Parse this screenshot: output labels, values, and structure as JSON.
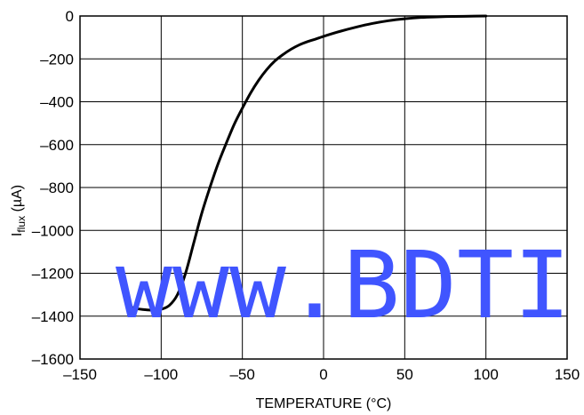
{
  "chart_data": {
    "type": "line",
    "title": "",
    "xlabel": "TEMPERATURE (°C)",
    "ylabel_main": "I",
    "ylabel_sub": "flux",
    "ylabel_unit": " (µA)",
    "xlim": [
      -150,
      150
    ],
    "ylim": [
      -1600,
      0
    ],
    "x_ticks": [
      -150,
      -100,
      -50,
      0,
      50,
      100,
      150
    ],
    "y_ticks": [
      0,
      -200,
      -400,
      -600,
      -800,
      -1000,
      -1200,
      -1400,
      -1600
    ],
    "x_tick_labels": [
      "–150",
      "–100",
      "–50",
      "0",
      "50",
      "100",
      "150"
    ],
    "y_tick_labels": [
      "0",
      "–200",
      "–400",
      "–600",
      "–800",
      "–1000",
      "–1200",
      "–1400",
      "–1600"
    ],
    "grid": true,
    "line_color": "#000000",
    "series": [
      {
        "x": [
          -120,
          -115,
          -110,
          -105,
          -100,
          -95,
          -90,
          -85,
          -80,
          -75,
          -70,
          -65,
          -60,
          -55,
          -50,
          -45,
          -40,
          -35,
          -30,
          -25,
          -20,
          -15,
          -10,
          -5,
          0,
          10,
          20,
          30,
          40,
          50,
          60,
          70,
          80,
          90,
          100
        ],
        "y": [
          -1355,
          -1365,
          -1370,
          -1372,
          -1368,
          -1350,
          -1300,
          -1200,
          -1060,
          -920,
          -800,
          -690,
          -595,
          -505,
          -430,
          -360,
          -300,
          -250,
          -210,
          -180,
          -155,
          -135,
          -120,
          -108,
          -95,
          -72,
          -52,
          -35,
          -22,
          -13,
          -7,
          -4,
          -2,
          -1,
          0
        ]
      }
    ]
  },
  "watermark": {
    "text": "www.BDTI",
    "color": "#4055ff"
  }
}
